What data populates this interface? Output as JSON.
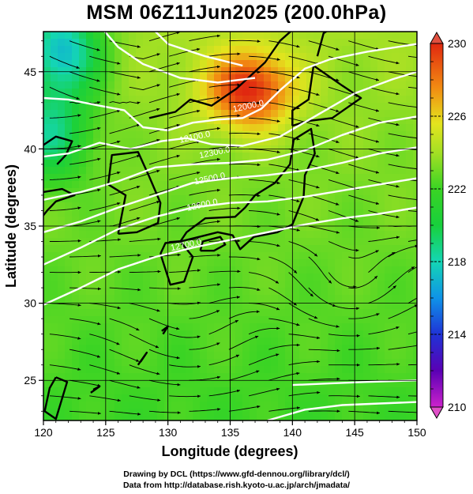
{
  "title": "MSM 06Z11Jun2025 (200.0hPa)",
  "xlabel": "Longitude (degrees)",
  "ylabel": "Latitude  (degrees)",
  "credits": [
    "Drawing by DCL (https://www.gfd-dennou.org/library/dcl/)",
    "Data from http://database.rish.kyoto-u.ac.jp/arch/jmadata/"
  ],
  "chart_data": {
    "type": "heatmap",
    "xlim": [
      120,
      150
    ],
    "ylim": [
      22.4,
      47.6
    ],
    "x_ticks": [
      120,
      125,
      130,
      135,
      140,
      145,
      150
    ],
    "y_ticks": [
      25,
      30,
      35,
      40,
      45
    ],
    "grid": true,
    "colorbar": {
      "min": 210,
      "max": 230,
      "tick_labels": [
        230,
        226,
        222,
        218,
        214,
        210
      ],
      "extend": "both",
      "placement": "right"
    },
    "contours": [
      {
        "label": "12000.0",
        "lon": 136.5,
        "lat": 42.6
      },
      {
        "label": "12100.0",
        "lon": 132.2,
        "lat": 40.6
      },
      {
        "label": "12300.0",
        "lon": 133.8,
        "lat": 39.6
      },
      {
        "label": "12500.0",
        "lon": 133.4,
        "lat": 37.9
      },
      {
        "label": "12600.0",
        "lon": 132.8,
        "lat": 36.2
      },
      {
        "label": "12700.0",
        "lon": 131.5,
        "lat": 33.6
      }
    ],
    "field_features": [
      {
        "kind": "max",
        "lon": 136.5,
        "lat": 43.8,
        "value": 229
      },
      {
        "kind": "min",
        "lon": 121.5,
        "lat": 46.5,
        "value": 216
      },
      {
        "kind": "min",
        "lon": 120.5,
        "lat": 41.0,
        "value": 218
      }
    ]
  },
  "colors": {
    "background": "#ffffff",
    "contour": "#ffffff",
    "streamline": "#000000",
    "coastline": "#000000"
  }
}
